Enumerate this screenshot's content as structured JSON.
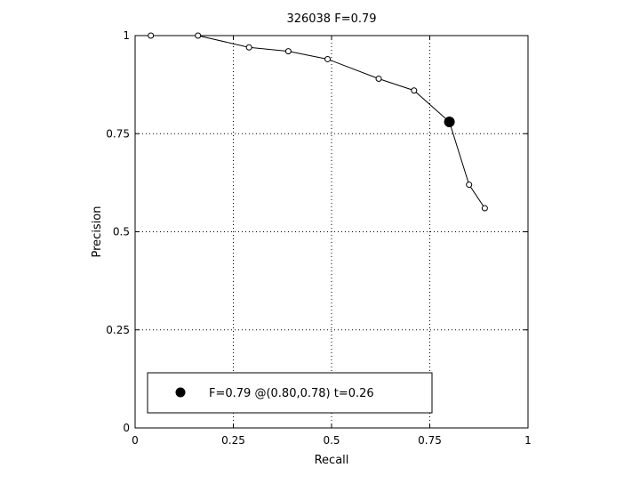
{
  "chart_data": {
    "type": "line",
    "title": "326038 F=0.79",
    "xlabel": "Recall",
    "ylabel": "Precision",
    "xlim": [
      0,
      1
    ],
    "ylim": [
      0,
      1
    ],
    "grid": true,
    "grid_style": "dotted",
    "x_ticks": [
      0,
      0.25,
      0.5,
      0.75,
      1
    ],
    "x_tick_labels": [
      "0",
      "0.25",
      "0.5",
      "0.75",
      "1"
    ],
    "y_ticks": [
      0,
      0.25,
      0.5,
      0.75,
      1
    ],
    "y_tick_labels": [
      "0",
      "0.25",
      "0.5",
      "0.75",
      "1"
    ],
    "series": [
      {
        "marker": "open-circle",
        "color": "#000000",
        "points": [
          {
            "x": 0.04,
            "y": 1.0
          },
          {
            "x": 0.16,
            "y": 1.0
          },
          {
            "x": 0.29,
            "y": 0.97
          },
          {
            "x": 0.39,
            "y": 0.96
          },
          {
            "x": 0.49,
            "y": 0.94
          },
          {
            "x": 0.62,
            "y": 0.89
          },
          {
            "x": 0.71,
            "y": 0.86
          },
          {
            "x": 0.8,
            "y": 0.78
          },
          {
            "x": 0.85,
            "y": 0.62
          },
          {
            "x": 0.89,
            "y": 0.56
          }
        ]
      }
    ],
    "highlight": {
      "x": 0.8,
      "y": 0.78,
      "marker": "filled-circle",
      "color": "#000000"
    },
    "legend": {
      "position": "bottom-left",
      "label": "F=0.79 @(0.80,0.78) t=0.26"
    }
  }
}
